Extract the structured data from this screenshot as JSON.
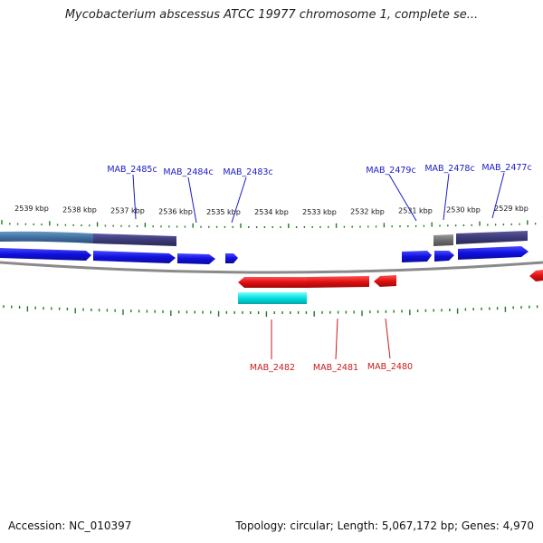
{
  "title": "Mycobacterium abscessus ATCC 19977 chromosome 1, complete se...",
  "footer": {
    "accession": "Accession: NC_010397",
    "summary": "Topology: circular; Length: 5,067,172 bp; Genes: 4,970"
  },
  "kbp_ticks": [
    "2539 kbp",
    "2538 kbp",
    "2537 kbp",
    "2536 kbp",
    "2535 kbp",
    "2534 kbp",
    "2533 kbp",
    "2532 kbp",
    "2531 kbp",
    "2530 kbp",
    "2529 kbp"
  ],
  "top_genes": [
    "MAB_2485c",
    "MAB_2484c",
    "MAB_2483c",
    "MAB_2479c",
    "MAB_2478c",
    "MAB_2477c"
  ],
  "bottom_genes": [
    "MAB_2482",
    "MAB_2481",
    "MAB_2480"
  ],
  "colors": {
    "forward_cds": "#1010e0",
    "reverse_cds": "#e01010",
    "rna": "#00e0e0",
    "top_label": "#1a1ac8",
    "bottom_label": "#c81a1a",
    "backbone": "#8a8a8a",
    "tick": "#1e7a1e",
    "feature_slate": "#3d3a78",
    "feature_steel": "#3f6fa0",
    "feature_gray": "#6e6e6e"
  }
}
